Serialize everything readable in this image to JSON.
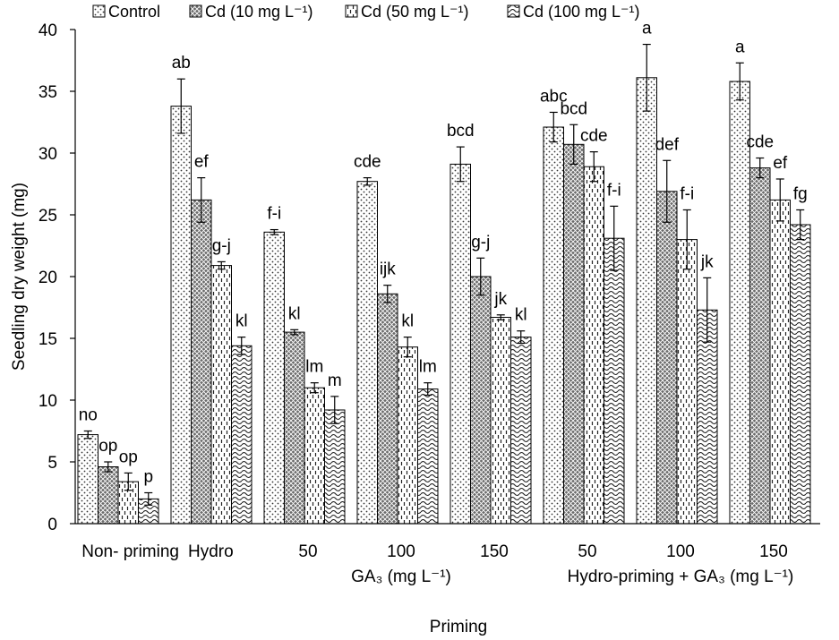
{
  "chart_data": {
    "type": "bar",
    "ylabel": "Seedling dry weight (mg)",
    "xlabel": "Priming",
    "ylim": [
      0,
      40
    ],
    "yticks": [
      0,
      5,
      10,
      15,
      20,
      25,
      30,
      35,
      40
    ],
    "legend_position": "top",
    "categories": [
      "Non- priming",
      "Hydro",
      "50",
      "100",
      "150",
      "50",
      "100",
      "150"
    ],
    "group_labels": [
      {
        "text": "GA₃ (mg L⁻¹)",
        "spans": [
          2,
          4
        ]
      },
      {
        "text": "Hydro-priming + GA₃ (mg L⁻¹)",
        "spans": [
          5,
          7
        ]
      }
    ],
    "series": [
      {
        "name": "Control",
        "pattern": "dots",
        "values": [
          7.2,
          33.8,
          23.6,
          27.7,
          29.1,
          32.1,
          36.1,
          35.8
        ],
        "errors": [
          0.3,
          2.2,
          0.2,
          0.3,
          1.4,
          1.2,
          2.7,
          1.5
        ],
        "labels": [
          "no",
          "ab",
          "f-i",
          "cde",
          "bcd",
          "abc",
          "a",
          "a"
        ]
      },
      {
        "name": "Cd (10 mg L⁻¹)",
        "pattern": "crosshatch",
        "values": [
          4.6,
          26.2,
          15.5,
          18.6,
          20.0,
          30.7,
          26.9,
          28.8
        ],
        "errors": [
          0.4,
          1.8,
          0.2,
          0.7,
          1.5,
          1.6,
          2.5,
          0.8
        ],
        "labels": [
          "op",
          "ef",
          "kl",
          "ijk",
          "g-j",
          "bcd",
          "def",
          "cde"
        ]
      },
      {
        "name": "Cd (50 mg L⁻¹)",
        "pattern": "dashes",
        "values": [
          3.4,
          20.9,
          11.0,
          14.3,
          16.7,
          28.9,
          23.0,
          26.2
        ],
        "errors": [
          0.7,
          0.3,
          0.4,
          0.8,
          0.2,
          1.2,
          2.4,
          1.7
        ],
        "labels": [
          "op",
          "g-j",
          "lm",
          "kl",
          "jk",
          "cde",
          "f-i",
          "ef"
        ]
      },
      {
        "name": "Cd (100 mg L⁻¹)",
        "pattern": "waves",
        "values": [
          2.0,
          14.4,
          9.2,
          10.9,
          15.1,
          23.1,
          17.3,
          24.2
        ],
        "errors": [
          0.5,
          0.7,
          1.1,
          0.5,
          0.5,
          2.6,
          2.6,
          1.2
        ],
        "labels": [
          "p",
          "kl",
          "m",
          "lm",
          "kl",
          "f-i",
          "jk",
          "fg"
        ]
      }
    ]
  }
}
